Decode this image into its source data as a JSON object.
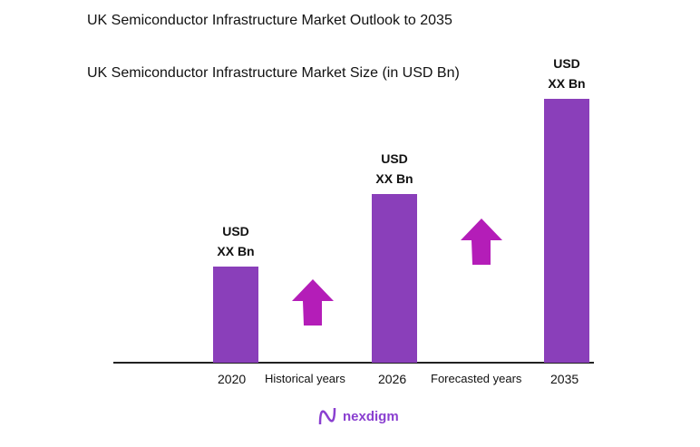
{
  "chart_data": {
    "type": "bar",
    "title": "UK Semiconductor Infrastructure Market Outlook to 2035",
    "subtitle": "UK Semiconductor Infrastructure Market Size (in USD Bn)",
    "categories": [
      "2020",
      "2026",
      "2035"
    ],
    "data_labels": [
      [
        "USD",
        "XX Bn"
      ],
      [
        "USD",
        "XX Bn"
      ],
      [
        "USD",
        "XX Bn"
      ]
    ],
    "period_labels": [
      "Historical years",
      "Forecasted years"
    ],
    "bar_color": "#8a3fba",
    "arrow_color": "#b41db8",
    "grid": false,
    "legend": "none"
  },
  "brand": {
    "name": "nexdigm",
    "color": "#8a3fd0"
  }
}
